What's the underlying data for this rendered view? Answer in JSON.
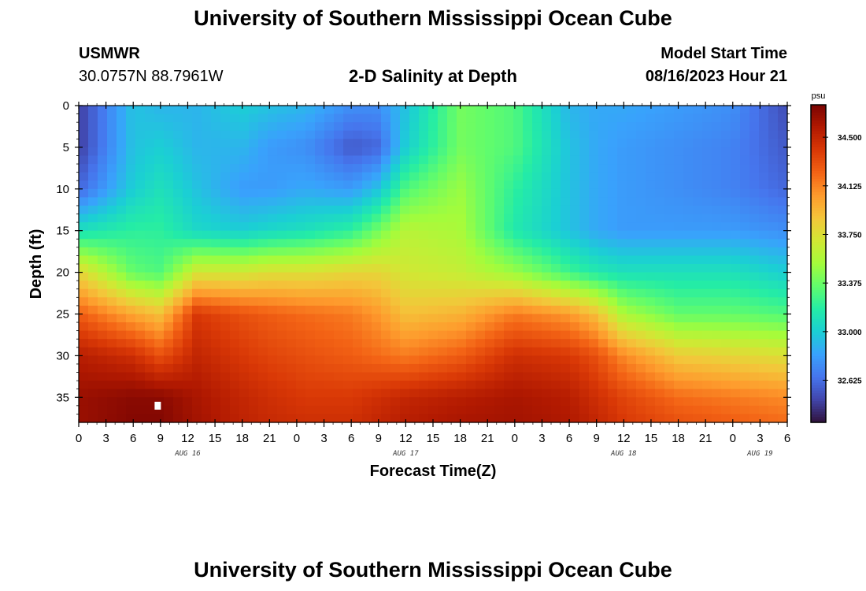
{
  "header": {
    "title": "University of Southern Mississippi Ocean Cube",
    "station": "USMWR",
    "coords": "30.0757N  88.7961W",
    "subtitle": "2-D Salinity at Depth",
    "model_label": "Model Start Time",
    "model_time": "08/16/2023 Hour 21"
  },
  "footer": {
    "title": "University of Southern Mississippi Ocean Cube"
  },
  "chart_data": {
    "type": "heatmap",
    "title": "2-D Salinity at Depth",
    "xlabel": "Forecast Time(Z)",
    "ylabel": "Depth (ft)",
    "x_tick_labels": [
      "0",
      "3",
      "6",
      "9",
      "12",
      "15",
      "18",
      "21",
      "0",
      "3",
      "6",
      "9",
      "12",
      "15",
      "18",
      "21",
      "0",
      "3",
      "6",
      "9",
      "12",
      "15",
      "18",
      "21",
      "0",
      "3",
      "6"
    ],
    "x_range_hours": [
      0,
      78
    ],
    "date_labels": [
      {
        "label": "AUG 16",
        "hour": 12
      },
      {
        "label": "AUG 17",
        "hour": 36
      },
      {
        "label": "AUG 18",
        "hour": 60
      },
      {
        "label": "AUG 19",
        "hour": 75
      }
    ],
    "y_ticks": [
      0,
      5,
      10,
      15,
      20,
      25,
      30,
      35
    ],
    "ylim": [
      0,
      38
    ],
    "y_reversed": true,
    "colorbar": {
      "unit": "psu",
      "ticks": [
        32.625,
        33.0,
        33.375,
        33.75,
        34.125,
        34.5
      ],
      "tick_labels": [
        "32.625",
        "33.000",
        "33.375",
        "33.750",
        "34.125",
        "34.500"
      ],
      "range": [
        32.3,
        34.75
      ],
      "colors": [
        "#30123b",
        "#4145ab",
        "#4675ed",
        "#39a2fc",
        "#1bcfd4",
        "#24eca6",
        "#61fc6c",
        "#a4fc3b",
        "#d1e834",
        "#f3c63a",
        "#fe9b2d",
        "#f36315",
        "#d93806",
        "#b11901",
        "#7a0402"
      ]
    },
    "time_hours": [
      0,
      6,
      9,
      13,
      18,
      21,
      25,
      30,
      33,
      36,
      42,
      48,
      54,
      57,
      60,
      66,
      72,
      78
    ],
    "depths_ft": [
      0,
      5,
      10,
      15,
      20,
      25,
      30,
      35,
      38
    ],
    "salinity_psu": [
      [
        32.45,
        32.95,
        32.9,
        32.9,
        33.0,
        32.95,
        32.9,
        32.75,
        32.75,
        32.95,
        33.4,
        33.3,
        32.9,
        32.85,
        32.85,
        32.8,
        32.75,
        32.5
      ],
      [
        32.45,
        32.95,
        33.0,
        32.9,
        32.9,
        32.8,
        32.75,
        32.55,
        32.6,
        33.0,
        33.4,
        33.3,
        32.95,
        32.85,
        32.8,
        32.75,
        32.7,
        32.55
      ],
      [
        32.6,
        33.0,
        33.1,
        32.95,
        32.8,
        32.8,
        32.85,
        32.8,
        32.95,
        33.3,
        33.5,
        33.2,
        32.95,
        32.85,
        32.8,
        32.75,
        32.7,
        32.6
      ],
      [
        33.1,
        33.2,
        33.2,
        33.05,
        33.0,
        33.05,
        33.1,
        33.2,
        33.4,
        33.6,
        33.55,
        33.15,
        32.95,
        32.85,
        32.8,
        32.8,
        32.8,
        32.75
      ],
      [
        33.8,
        33.35,
        33.3,
        33.7,
        33.7,
        33.75,
        33.75,
        33.8,
        33.8,
        33.7,
        33.65,
        33.5,
        33.25,
        33.15,
        33.1,
        33.1,
        33.1,
        33.0
      ],
      [
        34.25,
        34.0,
        33.9,
        34.4,
        34.3,
        34.25,
        34.2,
        34.15,
        34.05,
        33.9,
        33.95,
        34.15,
        34.05,
        33.9,
        33.55,
        33.35,
        33.35,
        33.3
      ],
      [
        34.55,
        34.45,
        34.3,
        34.5,
        34.4,
        34.35,
        34.3,
        34.25,
        34.2,
        34.15,
        34.25,
        34.45,
        34.4,
        34.3,
        34.1,
        33.85,
        33.8,
        33.75
      ],
      [
        34.65,
        34.7,
        34.7,
        34.6,
        34.5,
        34.45,
        34.4,
        34.4,
        34.45,
        34.5,
        34.55,
        34.6,
        34.55,
        34.45,
        34.35,
        34.2,
        34.15,
        34.1
      ],
      [
        34.65,
        34.72,
        34.72,
        34.62,
        34.52,
        34.48,
        34.45,
        34.45,
        34.5,
        34.55,
        34.6,
        34.62,
        34.58,
        34.5,
        34.4,
        34.3,
        34.25,
        34.2
      ]
    ],
    "marker": {
      "hour": 8.7,
      "depth_ft": 36,
      "color": "#ffffff"
    }
  }
}
